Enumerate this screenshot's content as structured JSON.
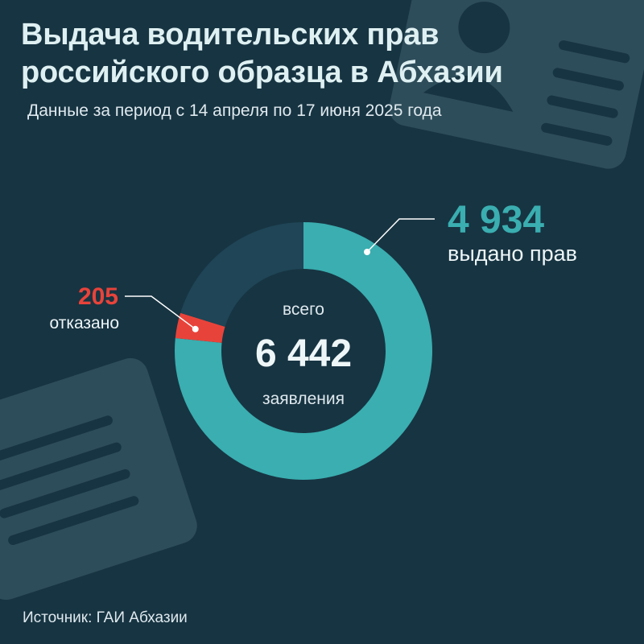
{
  "title": {
    "line1": "Выдача водительских прав",
    "line2": "российского образца в Абхазии"
  },
  "subtitle": "Данные за период с 14 апреля по 17 июня 2025 года",
  "source": "Источник: ГАИ Абхазии",
  "center": {
    "top_label": "всего",
    "value": "6 442",
    "bottom_label": "заявления"
  },
  "callouts": {
    "issued": {
      "value": "4 934",
      "label": "выдано прав"
    },
    "refused": {
      "value": "205",
      "label": "отказано"
    }
  },
  "colors": {
    "background": "#173442",
    "issued": "#3aaeb0",
    "refused": "#e8433a",
    "other": "#1f4556",
    "decoration": "#2e4d5a"
  },
  "icons": [
    "document-card-icon-top-right",
    "document-card-icon-bottom-left"
  ],
  "chart_data": {
    "type": "pie",
    "total": 6442,
    "slices": [
      {
        "label": "выдано прав",
        "value": 4934
      },
      {
        "label": "отказано",
        "value": 205
      },
      {
        "label": "",
        "value": 1303
      }
    ]
  }
}
